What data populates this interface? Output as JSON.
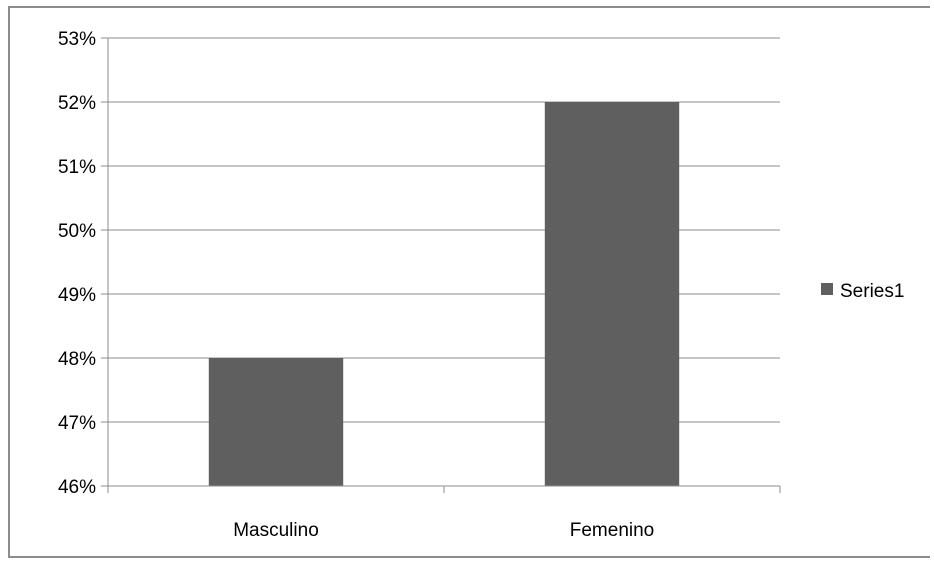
{
  "chart_data": {
    "type": "bar",
    "categories": [
      "Masculino",
      "Femenino"
    ],
    "series": [
      {
        "name": "Series1",
        "values": [
          48,
          52
        ],
        "color": "#5f5f5f"
      }
    ],
    "ylim": [
      46,
      53
    ],
    "y_ticks": [
      46,
      47,
      48,
      49,
      50,
      51,
      52,
      53
    ],
    "y_tick_labels": [
      "46%",
      "47%",
      "48%",
      "49%",
      "50%",
      "51%",
      "52%",
      "53%"
    ],
    "title": "",
    "xlabel": "",
    "ylabel": "",
    "grid": true,
    "legend_position": "right",
    "legend_label": "Series1"
  }
}
